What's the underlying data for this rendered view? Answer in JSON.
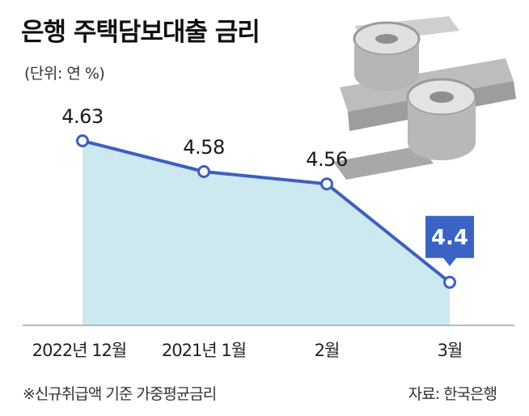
{
  "header": {
    "title": "은행 주택담보대출 금리",
    "unit": "(단위: 연 %)"
  },
  "footer": {
    "note": "※신규취급액 기준 가중평균금리",
    "source": "자료: 한국은행"
  },
  "colors": {
    "line": "#3f5fbf",
    "area": "#cbe9ee",
    "highlight": "#3a63c4",
    "decor_face": "#d4d4d4",
    "decor_shade": "#9a9a9a"
  },
  "decor": {
    "icon": "percent-sign-3d-icon"
  },
  "chart_data": {
    "type": "area",
    "categories": [
      "2022년 12월",
      "2021년 1월",
      "2월",
      "3월"
    ],
    "values": [
      4.63,
      4.58,
      4.56,
      4.4
    ],
    "highlight_index": 3,
    "title": "은행 주택담보대출 금리",
    "xlabel": "",
    "ylabel": "",
    "grid": false,
    "legend": "none"
  }
}
